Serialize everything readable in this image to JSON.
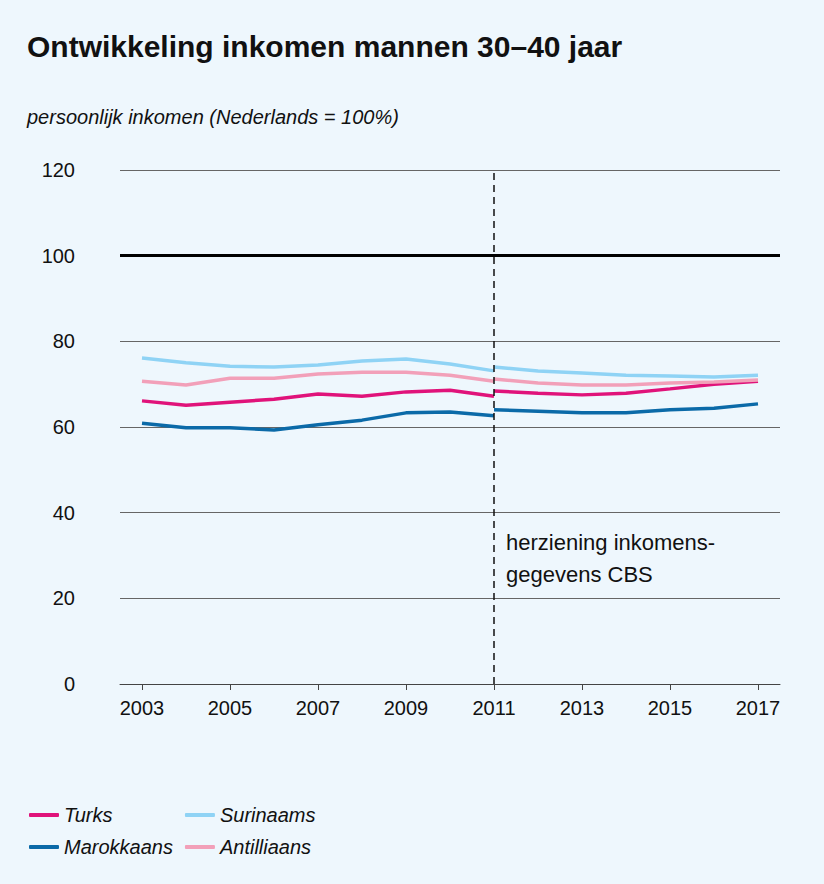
{
  "chart_data": {
    "type": "line",
    "title": "Ontwikkeling inkomen mannen 30–40 jaar",
    "subtitle": "persoonlijk inkomen (Nederlands = 100%)",
    "x": [
      2003,
      2004,
      2005,
      2006,
      2007,
      2008,
      2009,
      2010,
      2011,
      2011,
      2011,
      2012,
      2013,
      2014,
      2015,
      2016,
      2017
    ],
    "series": [
      {
        "name": "Turks",
        "color": "#e0137a",
        "values": [
          66.1,
          65.1,
          65.8,
          66.5,
          67.7,
          67.2,
          68.2,
          68.6,
          67.2,
          null,
          68.4,
          67.9,
          67.5,
          67.9,
          68.9,
          70.0,
          70.7
        ]
      },
      {
        "name": "Marokkaans",
        "color": "#0b6aa8",
        "values": [
          60.9,
          59.8,
          59.8,
          59.3,
          60.5,
          61.6,
          63.3,
          63.5,
          62.6,
          null,
          64.0,
          63.7,
          63.3,
          63.3,
          64.0,
          64.4,
          65.4
        ]
      },
      {
        "name": "Surinaams",
        "color": "#8fd3f5",
        "values": [
          76.1,
          75.0,
          74.2,
          74.0,
          74.5,
          75.4,
          75.9,
          74.7,
          73.1,
          null,
          74.0,
          73.1,
          72.6,
          72.1,
          71.9,
          71.7,
          72.1
        ]
      },
      {
        "name": "Antilliaans",
        "color": "#f2a0b9",
        "values": [
          70.7,
          69.8,
          71.4,
          71.4,
          72.4,
          72.8,
          72.8,
          72.1,
          70.7,
          null,
          71.2,
          70.3,
          69.8,
          69.8,
          70.3,
          70.5,
          71.0
        ]
      }
    ],
    "xlim": [
      2002.5,
      2017.5
    ],
    "xticks": [
      2003,
      2005,
      2007,
      2009,
      2011,
      2013,
      2015,
      2017
    ],
    "ylim": [
      0,
      120
    ],
    "yticks": [
      0,
      20,
      40,
      60,
      80,
      100,
      120
    ],
    "grid": true,
    "legend": "bottom-left",
    "reference_line": 100,
    "annotation": {
      "x": 2011,
      "text": [
        "herziening inkomens-",
        "gegevens CBS"
      ]
    }
  }
}
